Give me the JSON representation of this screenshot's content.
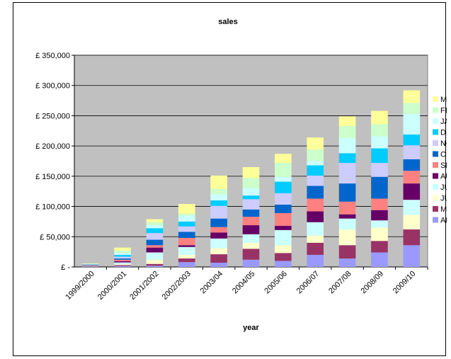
{
  "chart_data": {
    "type": "bar",
    "stacked": true,
    "title": "sales",
    "xlabel": "year",
    "ylabel": "",
    "ylim": [
      0,
      350000
    ],
    "yticks": [
      {
        "value": 0,
        "label": "£ -"
      },
      {
        "value": 50000,
        "label": "£ 50,000"
      },
      {
        "value": 100000,
        "label": "£ 100,000"
      },
      {
        "value": 150000,
        "label": "£ 150,000"
      },
      {
        "value": 200000,
        "label": "£ 200,000"
      },
      {
        "value": 250000,
        "label": "£ 250,000"
      },
      {
        "value": 300000,
        "label": "£ 300,000"
      },
      {
        "value": 350000,
        "label": "£ 350,000"
      }
    ],
    "grid": "horizontal",
    "legend_position": "right",
    "categories": [
      "1999/2000",
      "2000/2001",
      "2001/2002",
      "2002/2003",
      "2003/04",
      "2004/05",
      "2005/06",
      "2006/07",
      "2007/08",
      "2008/09",
      "2009/10"
    ],
    "series": [
      {
        "name": "APR",
        "color": "#9999ff",
        "values": [
          500,
          1500,
          2000,
          8000,
          7000,
          12000,
          10000,
          20000,
          14000,
          24000,
          36000
        ]
      },
      {
        "name": "MAY",
        "color": "#993366",
        "values": [
          500,
          1500,
          3000,
          6000,
          14000,
          18000,
          13000,
          20000,
          22000,
          19000,
          26000
        ]
      },
      {
        "name": "JUNE",
        "color": "#ffffcc",
        "values": [
          500,
          1500,
          7000,
          6000,
          10000,
          10000,
          13000,
          12000,
          26000,
          22000,
          24000
        ]
      },
      {
        "name": "JULY",
        "color": "#ccffff",
        "values": [
          500,
          3000,
          12000,
          13000,
          16000,
          14000,
          25000,
          22000,
          18000,
          12000,
          25000
        ]
      },
      {
        "name": "AUG",
        "color": "#660066",
        "values": [
          500,
          2000,
          8000,
          3000,
          10000,
          15000,
          7000,
          18000,
          7000,
          17000,
          27000
        ]
      },
      {
        "name": "SEP",
        "color": "#ff8080",
        "values": [
          500,
          2500,
          4000,
          12000,
          9000,
          14000,
          21000,
          21000,
          21000,
          19000,
          21000
        ]
      },
      {
        "name": "OCT",
        "color": "#0066cc",
        "values": [
          500,
          2000,
          9000,
          10000,
          14000,
          12000,
          14000,
          21000,
          30000,
          36000,
          19000
        ]
      },
      {
        "name": "NOV",
        "color": "#ccccff",
        "values": [
          500,
          3000,
          11000,
          9000,
          21000,
          17000,
          19000,
          17000,
          34000,
          23000,
          23000
        ]
      },
      {
        "name": "DEC",
        "color": "#00ccff",
        "values": [
          500,
          3000,
          8000,
          8000,
          9000,
          6000,
          19000,
          17000,
          16000,
          24000,
          18000
        ]
      },
      {
        "name": "JAN",
        "color": "#ccffff",
        "values": [
          500,
          3500,
          5000,
          10000,
          10000,
          12000,
          8000,
          7000,
          25000,
          20000,
          34000
        ]
      },
      {
        "name": "FEB",
        "color": "#ccffcc",
        "values": [
          500,
          3500,
          5000,
          3000,
          9000,
          17000,
          23000,
          19000,
          20000,
          20000,
          18000
        ]
      },
      {
        "name": "MAR",
        "color": "#ffff99",
        "values": [
          500,
          5000,
          5000,
          16000,
          22000,
          18000,
          15000,
          20000,
          16000,
          22000,
          21000
        ]
      }
    ]
  }
}
